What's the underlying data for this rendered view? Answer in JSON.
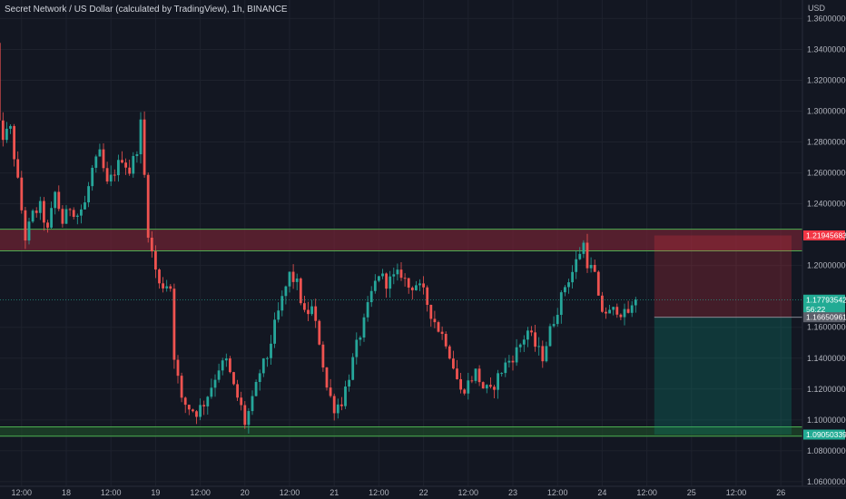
{
  "chart_data": {
    "type": "candlestick",
    "title": "Secret Network / US Dollar (calculated by TradingView), 1h, BINANCE",
    "currency": "USD",
    "ylim": [
      1.057,
      1.372
    ],
    "y_ticks": [
      "1.36000000",
      "1.34000000",
      "1.32000000",
      "1.30000000",
      "1.28000000",
      "1.26000000",
      "1.24000000",
      "1.20000000",
      "1.16000000",
      "1.14000000",
      "1.12000000",
      "1.10000000",
      "1.08000000",
      "1.06000000"
    ],
    "x_ticks": [
      {
        "label": "12:00",
        "t": -12
      },
      {
        "label": "18",
        "t": 0
      },
      {
        "label": "12:00",
        "t": 12
      },
      {
        "label": "19",
        "t": 24
      },
      {
        "label": "12:00",
        "t": 36
      },
      {
        "label": "20",
        "t": 48
      },
      {
        "label": "12:00",
        "t": 60
      },
      {
        "label": "21",
        "t": 72
      },
      {
        "label": "12:00",
        "t": 84
      },
      {
        "label": "22",
        "t": 96
      },
      {
        "label": "12:00",
        "t": 108
      },
      {
        "label": "23",
        "t": 120
      },
      {
        "label": "12:00",
        "t": 132
      },
      {
        "label": "24",
        "t": 144
      },
      {
        "label": "12:00",
        "t": 156
      },
      {
        "label": "25",
        "t": 168
      },
      {
        "label": "12:00",
        "t": 180
      },
      {
        "label": "26",
        "t": 192
      }
    ],
    "price_tags": [
      {
        "label": "1.21945683",
        "value": 1.2195,
        "color": "#f23645"
      },
      {
        "label": "1.17793542",
        "value": 1.1779,
        "color": "#22ab94"
      },
      {
        "label": "56:22",
        "value": 1.1716,
        "color": "#22ab94"
      },
      {
        "label": "1.16650961",
        "value": 1.1665,
        "color": "#5d606b"
      },
      {
        "label": "1.09050339",
        "value": 1.0905,
        "color": "#22ab94"
      }
    ],
    "zones": [
      {
        "name": "resistance",
        "from": 1.2095,
        "to": 1.2235,
        "fill": "#7a2335",
        "stroke": "#4caf50"
      },
      {
        "name": "support",
        "from": 1.0895,
        "to": 1.0955,
        "fill": "#1f4d2a",
        "stroke": "#4caf50"
      }
    ],
    "position": {
      "entry": 1.1665,
      "stop": 1.2195,
      "target": 1.0905,
      "t_start": 158,
      "t_end": 196,
      "stop_color": "#f23645",
      "target_color": "#089981"
    },
    "last_price": 1.1779,
    "anchors": [
      [
        -19,
        1.343
      ],
      [
        -18,
        1.29
      ],
      [
        -17,
        1.284
      ],
      [
        -15,
        1.288
      ],
      [
        -13,
        1.254
      ],
      [
        -11,
        1.218
      ],
      [
        -9,
        1.233
      ],
      [
        -7,
        1.238
      ],
      [
        -5,
        1.222
      ],
      [
        -3,
        1.247
      ],
      [
        -1,
        1.228
      ],
      [
        1,
        1.238
      ],
      [
        3,
        1.233
      ],
      [
        5,
        1.24
      ],
      [
        7,
        1.262
      ],
      [
        9,
        1.272
      ],
      [
        11,
        1.252
      ],
      [
        13,
        1.261
      ],
      [
        15,
        1.27
      ],
      [
        17,
        1.261
      ],
      [
        19,
        1.276
      ],
      [
        20,
        1.292
      ],
      [
        21,
        1.258
      ],
      [
        22,
        1.222
      ],
      [
        23,
        1.208
      ],
      [
        25,
        1.187
      ],
      [
        27,
        1.188
      ],
      [
        28,
        1.186
      ],
      [
        29,
        1.142
      ],
      [
        31,
        1.112
      ],
      [
        33,
        1.108
      ],
      [
        35,
        1.105
      ],
      [
        37,
        1.111
      ],
      [
        39,
        1.122
      ],
      [
        41,
        1.134
      ],
      [
        43,
        1.138
      ],
      [
        45,
        1.121
      ],
      [
        47,
        1.108
      ],
      [
        48,
        1.098
      ],
      [
        50,
        1.112
      ],
      [
        52,
        1.131
      ],
      [
        54,
        1.141
      ],
      [
        56,
        1.161
      ],
      [
        58,
        1.178
      ],
      [
        60,
        1.194
      ],
      [
        62,
        1.188
      ],
      [
        64,
        1.168
      ],
      [
        66,
        1.172
      ],
      [
        68,
        1.151
      ],
      [
        70,
        1.121
      ],
      [
        72,
        1.108
      ],
      [
        74,
        1.112
      ],
      [
        76,
        1.129
      ],
      [
        78,
        1.148
      ],
      [
        80,
        1.163
      ],
      [
        82,
        1.182
      ],
      [
        84,
        1.195
      ],
      [
        86,
        1.189
      ],
      [
        88,
        1.192
      ],
      [
        90,
        1.195
      ],
      [
        92,
        1.186
      ],
      [
        94,
        1.188
      ],
      [
        96,
        1.182
      ],
      [
        98,
        1.169
      ],
      [
        100,
        1.159
      ],
      [
        102,
        1.151
      ],
      [
        104,
        1.135
      ],
      [
        106,
        1.118
      ],
      [
        108,
        1.124
      ],
      [
        110,
        1.131
      ],
      [
        112,
        1.121
      ],
      [
        114,
        1.118
      ],
      [
        116,
        1.128
      ],
      [
        118,
        1.136
      ],
      [
        120,
        1.141
      ],
      [
        122,
        1.149
      ],
      [
        124,
        1.158
      ],
      [
        126,
        1.148
      ],
      [
        128,
        1.141
      ],
      [
        130,
        1.158
      ],
      [
        132,
        1.172
      ],
      [
        134,
        1.187
      ],
      [
        136,
        1.196
      ],
      [
        138,
        1.209
      ],
      [
        139,
        1.214
      ],
      [
        140,
        1.202
      ],
      [
        142,
        1.194
      ],
      [
        143,
        1.177
      ],
      [
        144,
        1.171
      ],
      [
        146,
        1.169
      ],
      [
        148,
        1.172
      ],
      [
        150,
        1.168
      ],
      [
        152,
        1.172
      ],
      [
        153,
        1.177
      ]
    ]
  }
}
